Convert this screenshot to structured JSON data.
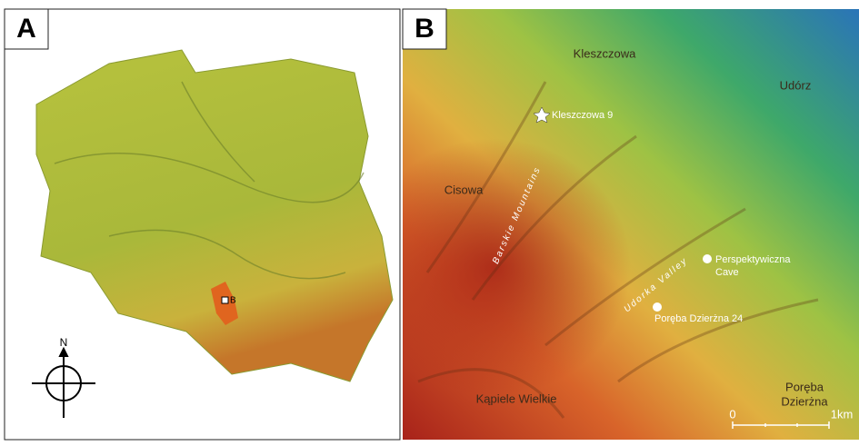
{
  "panel_a": {
    "label": "A",
    "compass_label": "N",
    "inset_marker": "B"
  },
  "panel_b": {
    "label": "B",
    "places": [
      "Kleszczowa",
      "Udórz",
      "Cisowa",
      "Kąpiele Wielkie",
      "Poręba",
      "Dzierżna"
    ],
    "sites": [
      "Kleszczowa 9",
      "Perspektywiczna",
      "Cave",
      "Poręba Dzierżna 24"
    ],
    "features": [
      "Barskie Mountains",
      "Udorka Valley"
    ],
    "scale": {
      "start": "0",
      "end": "1km"
    }
  }
}
